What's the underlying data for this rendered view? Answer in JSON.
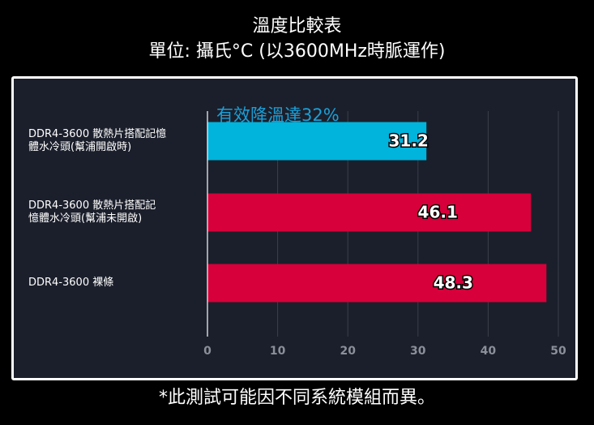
{
  "title": "溫度比較表",
  "subtitle": "單位: 攝氏°C (以3600MHz時脈運作)",
  "footnote": "*此測試可能因不同系統模組而異。",
  "colors": {
    "background": "#000000",
    "panel": "#1b1f2b",
    "bar_primary": "#00b4dc",
    "bar_secondary": "#d7003a",
    "annotation": "#1aa0d8",
    "grid": "#3a3f4b",
    "tick": "#8a8f99"
  },
  "chart_data": {
    "type": "bar",
    "orientation": "horizontal",
    "categories": [
      "DDR4-3600 散熱片搭配記憶體水冷頭(幫浦開啟時)",
      "DDR4-3600 散熱片搭配記憶體水冷頭(幫浦未開啟)",
      "DDR4-3600 裸條"
    ],
    "category_lines": [
      [
        "DDR4-3600 散熱片搭配記憶",
        "體水冷頭(幫浦開啟時)"
      ],
      [
        "DDR4-3600 散熱片搭配記",
        "憶體水冷頭(幫浦未開啟)"
      ],
      [
        "DDR4-3600 裸條"
      ]
    ],
    "values": [
      31.2,
      46.1,
      48.3
    ],
    "value_labels": [
      "31.2",
      "46.1",
      "48.3"
    ],
    "bar_colors": [
      "#00b4dc",
      "#d7003a",
      "#d7003a"
    ],
    "xlim": [
      0,
      50
    ],
    "xticks": [
      0,
      10,
      20,
      30,
      40,
      50
    ],
    "grid": true,
    "annotation": "有效降溫達32%"
  }
}
